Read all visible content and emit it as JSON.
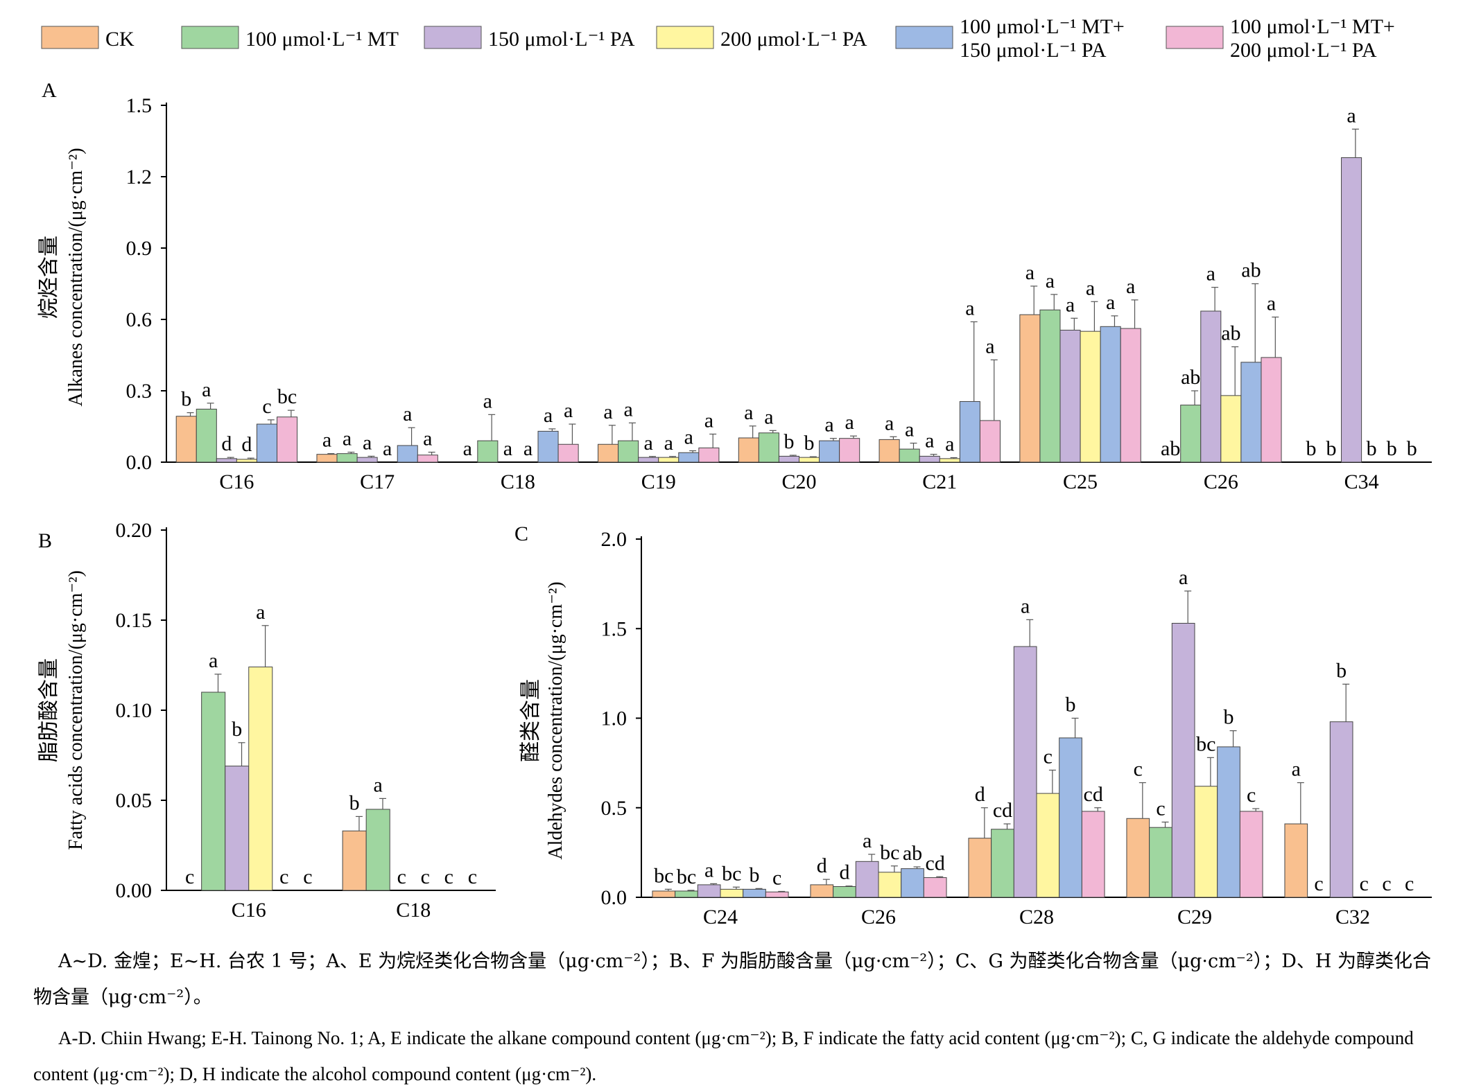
{
  "legend": [
    {
      "label": "CK",
      "color": "#F9C08F"
    },
    {
      "label": "100 μmol·L⁻¹ MT",
      "color": "#9FD6A0"
    },
    {
      "label": "150 μmol·L⁻¹ PA",
      "color": "#C5B3DA"
    },
    {
      "label": "200 μmol·L⁻¹ PA",
      "color": "#FFF6A0"
    },
    {
      "label": "100 μmol·L⁻¹ MT+\n150 μmol·L⁻¹ PA",
      "color": "#9DB9E4"
    },
    {
      "label": "100 μmol·L⁻¹ MT+\n200 μmol·L⁻¹ PA",
      "color": "#F2B7D5"
    }
  ],
  "chart_data": [
    {
      "panel": "A",
      "type": "bar",
      "ylabel_zh": "烷烃含量",
      "ylabel": "Alkanes concentration/(μg·cm⁻²)",
      "ylim": [
        0,
        1.5
      ],
      "yticks": [
        "0.0",
        "0.3",
        "0.6",
        "0.9",
        "1.2",
        "1.5"
      ],
      "categories": [
        "C16",
        "C17",
        "C18",
        "C19",
        "C20",
        "C21",
        "C25",
        "C26",
        "C34"
      ],
      "values": [
        [
          0.193,
          0.223,
          0.015,
          0.012,
          0.16,
          0.19
        ],
        [
          0.033,
          0.036,
          0.02,
          0.0,
          0.07,
          0.03
        ],
        [
          0.0,
          0.09,
          0.0,
          0.0,
          0.13,
          0.075
        ],
        [
          0.075,
          0.09,
          0.02,
          0.02,
          0.04,
          0.06
        ],
        [
          0.102,
          0.123,
          0.025,
          0.02,
          0.09,
          0.1
        ],
        [
          0.095,
          0.055,
          0.025,
          0.015,
          0.255,
          0.175
        ],
        [
          0.62,
          0.64,
          0.555,
          0.55,
          0.57,
          0.562
        ],
        [
          0.0,
          0.24,
          0.635,
          0.28,
          0.42,
          0.44
        ],
        [
          0.0,
          0.0,
          1.28,
          0.0,
          0.0,
          0.0
        ]
      ],
      "errors": [
        [
          0.015,
          0.025,
          0.005,
          0.005,
          0.018,
          0.028
        ],
        [
          0.003,
          0.006,
          0.005,
          0.0,
          0.075,
          0.012
        ],
        [
          0.0,
          0.11,
          0.0,
          0.0,
          0.01,
          0.085
        ],
        [
          0.08,
          0.075,
          0.004,
          0.004,
          0.008,
          0.058
        ],
        [
          0.05,
          0.01,
          0.004,
          0.003,
          0.01,
          0.01
        ],
        [
          0.012,
          0.025,
          0.008,
          0.004,
          0.335,
          0.255
        ],
        [
          0.12,
          0.065,
          0.05,
          0.125,
          0.045,
          0.12
        ],
        [
          0.0,
          0.06,
          0.1,
          0.205,
          0.33,
          0.17
        ],
        [
          0.0,
          0.0,
          0.12,
          0.0,
          0.0,
          0.0
        ]
      ],
      "letters": [
        [
          "b",
          "a",
          "d",
          "d",
          "c",
          "bc"
        ],
        [
          "a",
          "a",
          "a",
          "a",
          "a",
          "a"
        ],
        [
          "a",
          "a",
          "a",
          "a",
          "a",
          "a"
        ],
        [
          "a",
          "a",
          "a",
          "a",
          "a",
          "a"
        ],
        [
          "a",
          "a",
          "b",
          "b",
          "a",
          "a"
        ],
        [
          "a",
          "a",
          "a",
          "a",
          "a",
          "a"
        ],
        [
          "a",
          "a",
          "a",
          "a",
          "a",
          "a"
        ],
        [
          "ab",
          "ab",
          "a",
          "ab",
          "ab",
          "a"
        ],
        [
          "b",
          "b",
          "a",
          "b",
          "b",
          "b"
        ]
      ]
    },
    {
      "panel": "B",
      "type": "bar",
      "ylabel_zh": "脂肪酸含量",
      "ylabel": "Fatty acids concentration/(μg·cm⁻²)",
      "ylim": [
        0,
        0.2
      ],
      "yticks": [
        "0.00",
        "0.05",
        "0.10",
        "0.15",
        "0.20"
      ],
      "categories": [
        "C16",
        "C18"
      ],
      "values": [
        [
          0.0,
          0.11,
          0.069,
          0.124,
          0.0,
          0.0
        ],
        [
          0.033,
          0.045,
          0.0,
          0.0,
          0.0,
          0.0
        ]
      ],
      "errors": [
        [
          0.0,
          0.01,
          0.013,
          0.023,
          0.0,
          0.0
        ],
        [
          0.008,
          0.006,
          0.0,
          0.0,
          0.0,
          0.0
        ]
      ],
      "letters": [
        [
          "c",
          "a",
          "b",
          "a",
          "c",
          "c"
        ],
        [
          "b",
          "a",
          "c",
          "c",
          "c",
          "c"
        ]
      ]
    },
    {
      "panel": "C",
      "type": "bar",
      "ylabel_zh": "醛类含量",
      "ylabel": "Aldehydes concentration/(μg·cm⁻²)",
      "ylim": [
        0,
        2.0
      ],
      "yticks": [
        "0.0",
        "0.5",
        "1.0",
        "1.5",
        "2.0"
      ],
      "categories": [
        "C24",
        "C26",
        "C28",
        "C29",
        "C32"
      ],
      "values": [
        [
          0.035,
          0.035,
          0.07,
          0.045,
          0.045,
          0.03
        ],
        [
          0.07,
          0.06,
          0.2,
          0.14,
          0.16,
          0.11
        ],
        [
          0.33,
          0.38,
          1.4,
          0.58,
          0.89,
          0.48
        ],
        [
          0.44,
          0.39,
          1.53,
          0.62,
          0.84,
          0.48
        ],
        [
          0.41,
          0.0,
          0.98,
          0.0,
          0.0,
          0.0
        ]
      ],
      "errors": [
        [
          0.01,
          0.004,
          0.006,
          0.012,
          0.004,
          0.003
        ],
        [
          0.03,
          0.003,
          0.04,
          0.035,
          0.01,
          0.005
        ],
        [
          0.17,
          0.03,
          0.15,
          0.13,
          0.11,
          0.02
        ],
        [
          0.2,
          0.03,
          0.18,
          0.16,
          0.09,
          0.015
        ],
        [
          0.23,
          0.0,
          0.21,
          0.0,
          0.0,
          0.0
        ]
      ],
      "letters": [
        [
          "bc",
          "bc",
          "a",
          "bc",
          "b",
          "c"
        ],
        [
          "d",
          "d",
          "a",
          "bc",
          "ab",
          "cd"
        ],
        [
          "d",
          "cd",
          "a",
          "c",
          "b",
          "cd"
        ],
        [
          "c",
          "c",
          "a",
          "bc",
          "b",
          "c"
        ],
        [
          "a",
          "c",
          "b",
          "c",
          "c",
          "c"
        ]
      ]
    }
  ],
  "captions": {
    "zh": "A~D. 金煌；E~H. 台农 1 号；A、E 为烷烃类化合物含量（μg·cm⁻²）；B、F 为脂肪酸含量（μg·cm⁻²）；C、G 为醛类化合物含量（μg·cm⁻²）；D、H 为醇类化合物含量（μg·cm⁻²）。",
    "en": "A-D. Chiin Hwang; E-H. Tainong No. 1; A, E indicate the alkane compound content (μg·cm⁻²); B, F indicate the fatty acid content (μg·cm⁻²); C, G indicate the aldehyde compound content (μg·cm⁻²); D, H indicate the alcohol compound content (μg·cm⁻²)."
  }
}
